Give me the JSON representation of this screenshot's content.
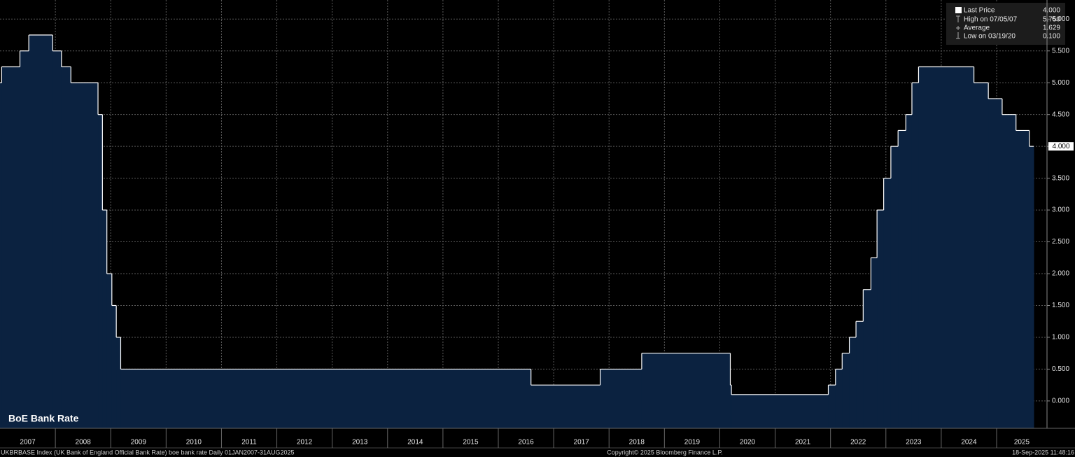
{
  "chart_data": {
    "type": "step-area",
    "title": "BoE Bank Rate",
    "step": "post",
    "x": [
      2007.0,
      2007.03,
      2007.36,
      2007.52,
      2007.95,
      2008.11,
      2008.28,
      2008.77,
      2008.85,
      2008.93,
      2009.02,
      2009.1,
      2009.18,
      2016.59,
      2017.84,
      2018.59,
      2020.19,
      2020.21,
      2021.96,
      2022.09,
      2022.21,
      2022.34,
      2022.46,
      2022.59,
      2022.73,
      2022.84,
      2022.96,
      2023.09,
      2023.22,
      2023.36,
      2023.47,
      2023.59,
      2024.59,
      2024.85,
      2025.1,
      2025.35,
      2025.59,
      2025.67
    ],
    "series": [
      {
        "name": "Last Price",
        "color": "#ffffff",
        "fill": "#0b2240",
        "values": [
          5.0,
          5.25,
          5.5,
          5.75,
          5.5,
          5.25,
          5.0,
          4.5,
          3.0,
          2.0,
          1.5,
          1.0,
          0.5,
          0.25,
          0.5,
          0.75,
          0.25,
          0.1,
          0.25,
          0.5,
          0.75,
          1.0,
          1.25,
          1.75,
          2.25,
          3.0,
          3.5,
          4.0,
          4.25,
          4.5,
          5.0,
          5.25,
          5.0,
          4.75,
          4.5,
          4.25,
          4.0,
          4.0
        ]
      }
    ],
    "xlim": [
      2007,
      2025.91
    ],
    "xticks": [
      2007,
      2008,
      2009,
      2010,
      2011,
      2012,
      2013,
      2014,
      2015,
      2016,
      2017,
      2018,
      2019,
      2020,
      2021,
      2022,
      2023,
      2024,
      2025
    ],
    "ylim": [
      -0.43,
      6.3
    ],
    "yticks": [
      {
        "value": 0,
        "label": "0.000"
      },
      {
        "value": 0.5,
        "label": "0.500"
      },
      {
        "value": 1,
        "label": "1.000"
      },
      {
        "value": 1.5,
        "label": "1.500"
      },
      {
        "value": 2,
        "label": "2.000"
      },
      {
        "value": 2.5,
        "label": "2.500"
      },
      {
        "value": 3,
        "label": "3.000"
      },
      {
        "value": 3.5,
        "label": "3.500"
      },
      {
        "value": 4,
        "label": "4.000"
      },
      {
        "value": 4.5,
        "label": "4.500"
      },
      {
        "value": 5,
        "label": "5.000"
      },
      {
        "value": 5.5,
        "label": "5.500"
      },
      {
        "value": 6,
        "label": "6.000"
      }
    ],
    "grid": true,
    "legend": {
      "position": "top-right",
      "items": [
        {
          "label": "Last Price",
          "value": "4.000"
        },
        {
          "label": "High on 07/05/07",
          "value": "5.750"
        },
        {
          "label": "Average",
          "value": "1.629"
        },
        {
          "label": "Low on 03/19/20",
          "value": "0.100"
        }
      ]
    }
  },
  "footer": {
    "left": "UKBRBASE Index (UK Bank of England Official Bank Rate) boe bank rate  Daily 01JAN2007-31AUG2025",
    "center": "Copyright© 2025 Bloomberg Finance L.P.",
    "right": "18-Sep-2025 11:48:16"
  }
}
